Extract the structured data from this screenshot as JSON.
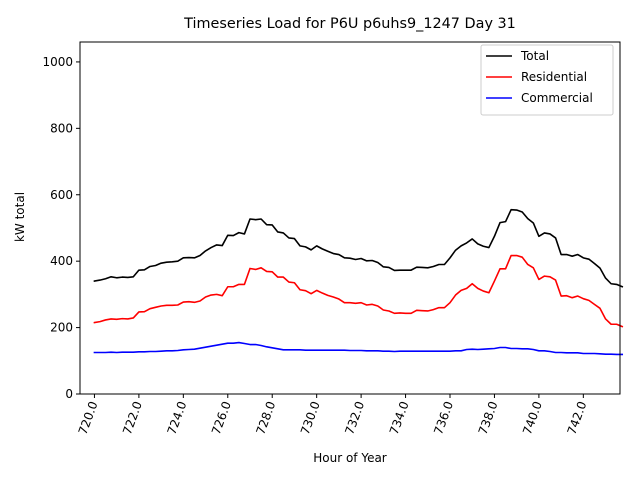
{
  "chart_data": {
    "type": "line",
    "title": "Timeseries Load for P6U p6uhs9_1247  Day 31",
    "xlabel": "Hour of Year",
    "ylabel": "kW total",
    "xlim": [
      719.35,
      743.65
    ],
    "ylim": [
      0,
      1060
    ],
    "x_ticks": [
      720,
      722,
      724,
      726,
      728,
      730,
      732,
      734,
      736,
      738,
      740,
      742
    ],
    "x_tick_labels": [
      "720.0",
      "722.0",
      "724.0",
      "726.0",
      "728.0",
      "730.0",
      "732.0",
      "734.0",
      "736.0",
      "738.0",
      "740.0",
      "742.0"
    ],
    "y_ticks": [
      0,
      200,
      400,
      600,
      800,
      1000
    ],
    "y_tick_labels": [
      "0",
      "200",
      "400",
      "600",
      "800",
      "1000"
    ],
    "legend_position": "top-right",
    "x_start": 720.0,
    "x_step": 0.25,
    "series": [
      {
        "name": "Total",
        "color": "#000000",
        "values": [
          340,
          343,
          347,
          353,
          350,
          352,
          351,
          353,
          373,
          374,
          384,
          387,
          394,
          397,
          398,
          400,
          410,
          411,
          410,
          417,
          431,
          441,
          449,
          447,
          478,
          477,
          486,
          482,
          527,
          525,
          527,
          510,
          509,
          488,
          485,
          470,
          468,
          446,
          443,
          434,
          446,
          437,
          430,
          423,
          420,
          410,
          409,
          405,
          408,
          401,
          402,
          396,
          383,
          381,
          372,
          373,
          373,
          373,
          382,
          381,
          380,
          384,
          390,
          390,
          410,
          433,
          446,
          455,
          467,
          452,
          445,
          441,
          475,
          516,
          519,
          555,
          554,
          548,
          528,
          515,
          475,
          485,
          482,
          470,
          420,
          420,
          415,
          420,
          410,
          406,
          393,
          379,
          349,
          332,
          330,
          323
        ]
      },
      {
        "name": "Residential",
        "color": "#ff0000",
        "values": [
          215,
          218,
          223,
          226,
          225,
          227,
          226,
          229,
          247,
          248,
          257,
          261,
          265,
          267,
          267,
          268,
          277,
          278,
          276,
          280,
          292,
          298,
          300,
          296,
          323,
          323,
          330,
          330,
          378,
          375,
          380,
          369,
          368,
          352,
          352,
          337,
          335,
          314,
          311,
          302,
          312,
          304,
          297,
          292,
          286,
          275,
          275,
          273,
          275,
          268,
          270,
          265,
          253,
          250,
          243,
          244,
          243,
          243,
          252,
          251,
          250,
          254,
          260,
          260,
          275,
          298,
          312,
          318,
          332,
          318,
          310,
          305,
          340,
          377,
          377,
          417,
          417,
          412,
          390,
          380,
          345,
          355,
          353,
          343,
          295,
          296,
          290,
          295,
          287,
          282,
          270,
          258,
          226,
          210,
          210,
          203
        ]
      },
      {
        "name": "Commercial",
        "color": "#0000ff",
        "values": [
          125,
          125,
          125,
          126,
          125,
          126,
          126,
          126,
          127,
          127,
          128,
          128,
          129,
          130,
          130,
          131,
          133,
          134,
          135,
          138,
          141,
          144,
          147,
          150,
          153,
          153,
          155,
          152,
          149,
          149,
          146,
          142,
          139,
          136,
          133,
          133,
          133,
          133,
          132,
          132,
          132,
          132,
          132,
          132,
          132,
          132,
          131,
          131,
          131,
          130,
          130,
          130,
          129,
          129,
          128,
          129,
          129,
          129,
          129,
          129,
          129,
          129,
          129,
          129,
          129,
          130,
          130,
          134,
          135,
          134,
          135,
          136,
          137,
          140,
          140,
          137,
          137,
          136,
          136,
          134,
          130,
          130,
          128,
          125,
          125,
          124,
          124,
          124,
          122,
          122,
          122,
          121,
          120,
          120,
          119,
          119
        ]
      }
    ]
  }
}
